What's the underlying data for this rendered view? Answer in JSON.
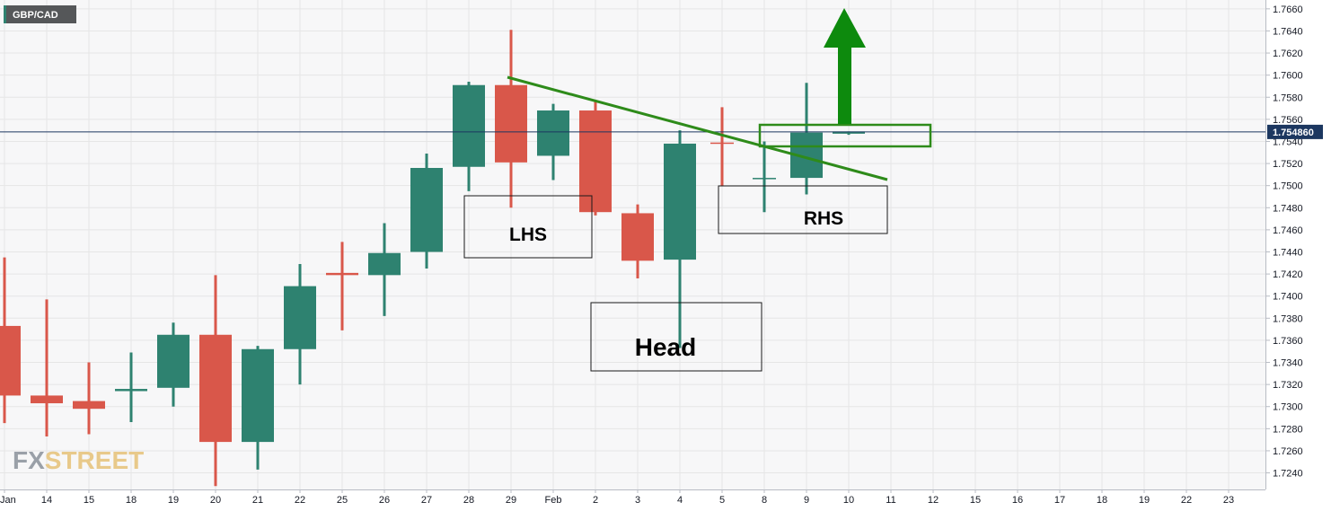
{
  "symbol": "GBP/CAD",
  "watermark": {
    "part1": "FX",
    "part2": "STREET"
  },
  "colors": {
    "up": "#2e8270",
    "down": "#d9574a",
    "trendline": "#2e8b1a",
    "arrow": "#0d8a0d",
    "price_line": "#1c3760",
    "grid": "#e6e6e6",
    "bg": "#f7f7f8"
  },
  "chart_data": {
    "type": "candlestick",
    "ylim": [
      1.7225,
      1.7668
    ],
    "y_ticks": [
      "1.7240",
      "1.7260",
      "1.7280",
      "1.7300",
      "1.7320",
      "1.7340",
      "1.7360",
      "1.7380",
      "1.7400",
      "1.7420",
      "1.7440",
      "1.7460",
      "1.7480",
      "1.7500",
      "1.7520",
      "1.7540",
      "1.7560",
      "1.7580",
      "1.7600",
      "1.7620",
      "1.7640",
      "1.7660"
    ],
    "x_ticks": [
      "Jan",
      "14",
      "15",
      "18",
      "19",
      "20",
      "21",
      "22",
      "25",
      "26",
      "27",
      "28",
      "29",
      "Feb",
      "2",
      "3",
      "4",
      "5",
      "8",
      "9",
      "10",
      "11",
      "12",
      "15",
      "16",
      "17",
      "18",
      "19",
      "22",
      "23"
    ],
    "current_price": "1.754860",
    "candles": [
      {
        "date": "Jan 13",
        "open": 1.7373,
        "high": 1.7435,
        "low": 1.7285,
        "close": 1.731
      },
      {
        "date": "14",
        "open": 1.731,
        "high": 1.7397,
        "low": 1.7273,
        "close": 1.7303
      },
      {
        "date": "15",
        "open": 1.7305,
        "high": 1.734,
        "low": 1.7275,
        "close": 1.7298
      },
      {
        "date": "18",
        "open": 1.7314,
        "high": 1.7349,
        "low": 1.7286,
        "close": 1.7316
      },
      {
        "date": "19",
        "open": 1.7317,
        "high": 1.7376,
        "low": 1.73,
        "close": 1.7365
      },
      {
        "date": "20",
        "open": 1.7365,
        "high": 1.7419,
        "low": 1.7228,
        "close": 1.7268
      },
      {
        "date": "21",
        "open": 1.7268,
        "high": 1.7355,
        "low": 1.7243,
        "close": 1.7352
      },
      {
        "date": "22",
        "open": 1.7352,
        "high": 1.7429,
        "low": 1.732,
        "close": 1.7409
      },
      {
        "date": "25",
        "open": 1.7421,
        "high": 1.7449,
        "low": 1.7369,
        "close": 1.7419
      },
      {
        "date": "26",
        "open": 1.7419,
        "high": 1.7466,
        "low": 1.7382,
        "close": 1.7439
      },
      {
        "date": "27",
        "open": 1.744,
        "high": 1.7529,
        "low": 1.7425,
        "close": 1.7516
      },
      {
        "date": "28",
        "open": 1.7517,
        "high": 1.7594,
        "low": 1.7495,
        "close": 1.7591
      },
      {
        "date": "29",
        "open": 1.7591,
        "high": 1.7641,
        "low": 1.748,
        "close": 1.7521
      },
      {
        "date": "Feb 1",
        "open": 1.7527,
        "high": 1.7574,
        "low": 1.7505,
        "close": 1.7568
      },
      {
        "date": "2",
        "open": 1.7568,
        "high": 1.7576,
        "low": 1.7473,
        "close": 1.7476
      },
      {
        "date": "3",
        "open": 1.7475,
        "high": 1.7483,
        "low": 1.7416,
        "close": 1.7432
      },
      {
        "date": "4",
        "open": 1.7433,
        "high": 1.755,
        "low": 1.7353,
        "close": 1.7538
      },
      {
        "date": "5",
        "open": 1.7539,
        "high": 1.7571,
        "low": 1.75,
        "close": 1.7538
      },
      {
        "date": "8",
        "open": 1.7507,
        "high": 1.754,
        "low": 1.7476,
        "close": 1.7507
      },
      {
        "date": "9",
        "open": 1.7507,
        "high": 1.7593,
        "low": 1.7492,
        "close": 1.7548
      },
      {
        "date": "10",
        "open": 1.7547,
        "high": 1.7549,
        "low": 1.7546,
        "close": 1.7549
      }
    ],
    "annotations": [
      {
        "label": "LHS"
      },
      {
        "label": "Head"
      },
      {
        "label": "RHS"
      }
    ]
  }
}
